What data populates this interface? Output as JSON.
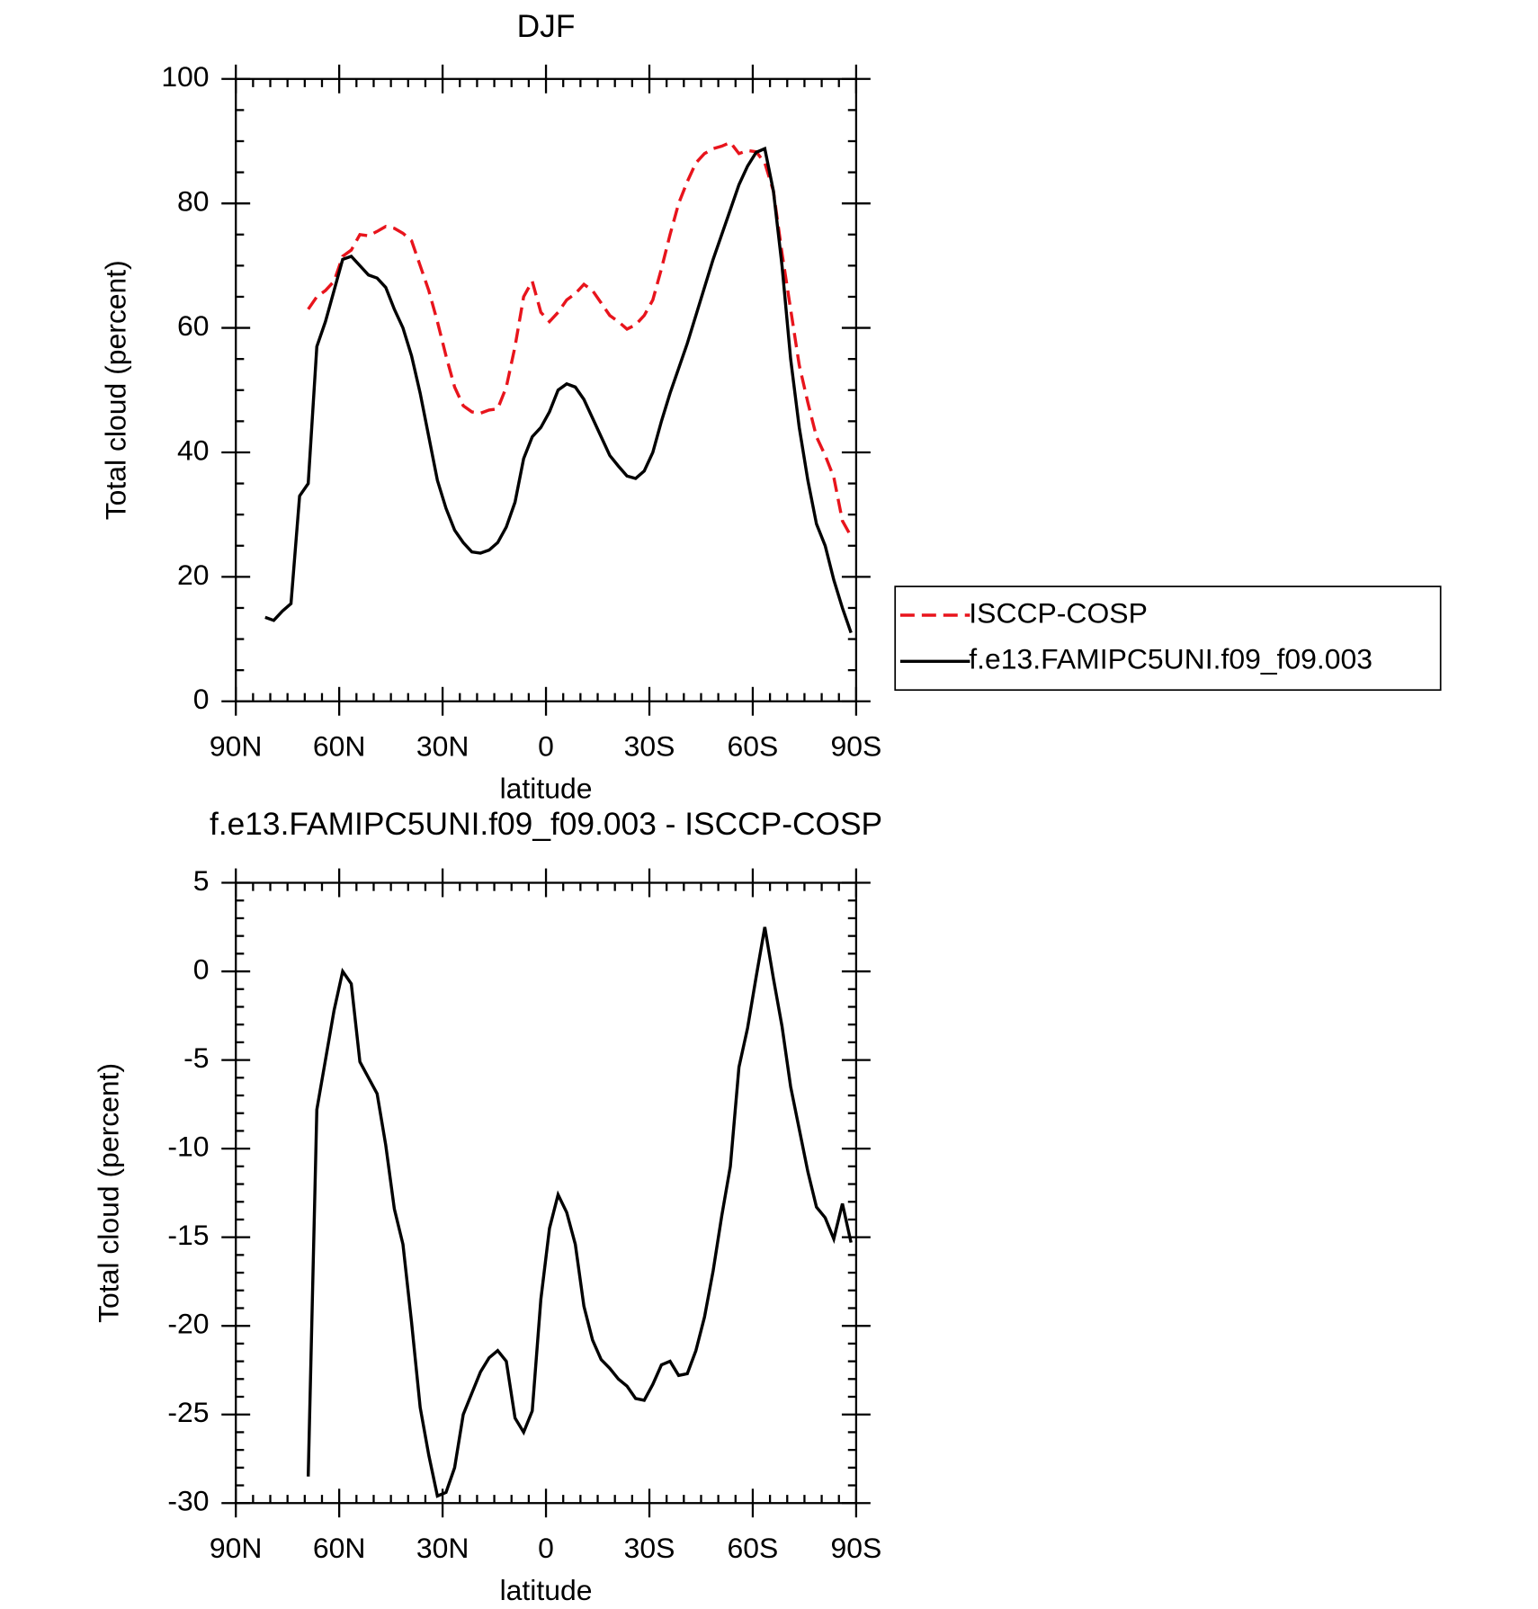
{
  "chart_data": [
    {
      "type": "line",
      "title": "DJF",
      "xlabel": "latitude",
      "ylabel": "Total cloud (percent)",
      "xlim": [
        90,
        -90
      ],
      "xticks": [
        {
          "value": 90,
          "label": "90N"
        },
        {
          "value": 60,
          "label": "60N"
        },
        {
          "value": 30,
          "label": "30N"
        },
        0,
        {
          "value": -30,
          "label": "30S"
        },
        {
          "value": -60,
          "label": "60S"
        },
        {
          "value": -90,
          "label": "90S"
        }
      ],
      "ylim": [
        0,
        100
      ],
      "yticks": [
        0,
        20,
        40,
        60,
        80,
        100
      ],
      "legend": "right",
      "series": [
        {
          "name": "ISCCP-COSP",
          "color": "#e8141c",
          "dash": true,
          "x": [
            69,
            66.5,
            64,
            61.5,
            59,
            56.5,
            54,
            51.5,
            49,
            46.5,
            44,
            41.5,
            39,
            36.5,
            34,
            31.5,
            29,
            26.5,
            24,
            21.5,
            19,
            16.5,
            14,
            11.5,
            9,
            6.5,
            4,
            1.5,
            -1,
            -3.5,
            -6,
            -8.5,
            -11,
            -13.5,
            -16,
            -18.5,
            -21,
            -23.5,
            -26,
            -28.5,
            -31,
            -33.5,
            -36,
            -38.5,
            -41,
            -43.5,
            -46,
            -48.5,
            -51,
            -53.5,
            -56,
            -58.5,
            -61,
            -63.5,
            -66,
            -68.5,
            -71,
            -73.5,
            -76,
            -78.5,
            -81,
            -83.5,
            -86,
            -88.5
          ],
          "values": [
            63,
            65,
            66,
            67.5,
            71.5,
            72.5,
            75,
            74.8,
            75.5,
            76.3,
            76,
            75.2,
            74,
            70,
            66,
            61,
            55.5,
            50.5,
            47.5,
            46.5,
            46.3,
            46.8,
            47,
            50.5,
            57,
            65,
            67.5,
            62.5,
            61,
            62.5,
            64.5,
            65.5,
            67,
            66,
            64,
            62,
            61,
            59.8,
            60.5,
            62,
            64.5,
            69.5,
            75,
            80,
            83.5,
            86.5,
            88,
            88.8,
            89.2,
            89.8,
            88,
            88.5,
            88.3,
            86.5,
            82,
            72,
            63,
            54,
            48,
            42.5,
            39.5,
            36,
            29,
            26.5
          ]
        },
        {
          "name": "f.e13.FAMIPC5UNI.f09_f09.003",
          "color": "#000000",
          "dash": false,
          "x": [
            81.5,
            79,
            76.5,
            74,
            71.5,
            69,
            66.5,
            64,
            61.5,
            59,
            56.5,
            54,
            51.5,
            49,
            46.5,
            44,
            41.5,
            39,
            36.5,
            34,
            31.5,
            29,
            26.5,
            24,
            21.5,
            19,
            16.5,
            14,
            11.5,
            9,
            6.5,
            4,
            1.5,
            -1,
            -3.5,
            -6,
            -8.5,
            -11,
            -13.5,
            -16,
            -18.5,
            -21,
            -23.5,
            -26,
            -28.5,
            -31,
            -33.5,
            -36,
            -38.5,
            -41,
            -43.5,
            -46,
            -48.5,
            -51,
            -53.5,
            -56,
            -58.5,
            -61,
            -63.5,
            -66,
            -68.5,
            -71,
            -73.5,
            -76,
            -78.5,
            -81,
            -83.5,
            -86,
            -88.5
          ],
          "values": [
            13.5,
            13,
            14.5,
            15.7,
            33,
            35,
            57,
            61,
            66,
            71,
            71.5,
            70,
            68.5,
            68,
            66.5,
            63,
            60,
            55.5,
            49.5,
            42.5,
            35.5,
            31,
            27.5,
            25.5,
            24,
            23.8,
            24.3,
            25.5,
            28,
            32,
            39,
            42.5,
            44,
            46.5,
            50,
            51,
            50.5,
            48.5,
            45.5,
            42.5,
            39.5,
            37.8,
            36.2,
            35.8,
            37,
            40,
            45,
            49.5,
            53.5,
            57.5,
            62,
            66.5,
            71,
            75,
            79,
            83,
            86,
            88.2,
            88.8,
            82,
            70,
            55,
            44,
            35.5,
            28.5,
            25,
            19.5,
            15,
            11
          ]
        }
      ]
    },
    {
      "type": "line",
      "title": "f.e13.FAMIPC5UNI.f09_f09.003 - ISCCP-COSP",
      "xlabel": "latitude",
      "ylabel": "Total cloud (percent)",
      "xlim": [
        90,
        -90
      ],
      "xticks": [
        {
          "value": 90,
          "label": "90N"
        },
        {
          "value": 60,
          "label": "60N"
        },
        {
          "value": 30,
          "label": "30N"
        },
        0,
        {
          "value": -30,
          "label": "30S"
        },
        {
          "value": -60,
          "label": "60S"
        },
        {
          "value": -90,
          "label": "90S"
        }
      ],
      "ylim": [
        -30,
        5
      ],
      "yticks": [
        -30,
        -25,
        -20,
        -15,
        -10,
        -5,
        0,
        5
      ],
      "series": [
        {
          "color": "#000000",
          "dash": false,
          "x": [
            69,
            66.5,
            64,
            61.5,
            59,
            56.5,
            54,
            51.5,
            49,
            46.5,
            44,
            41.5,
            39,
            36.5,
            34,
            31.5,
            29,
            26.5,
            24,
            21.5,
            19,
            16.5,
            14,
            11.5,
            9,
            6.5,
            4,
            1.5,
            -1,
            -3.5,
            -6,
            -8.5,
            -11,
            -13.5,
            -16,
            -18.5,
            -21,
            -23.5,
            -26,
            -28.5,
            -31,
            -33.5,
            -36,
            -38.5,
            -41,
            -43.5,
            -46,
            -48.5,
            -51,
            -53.5,
            -56,
            -58.5,
            -61,
            -63.5,
            -66,
            -68.5,
            -71,
            -73.5,
            -76,
            -78.5,
            -81,
            -83.5,
            -86,
            -88.5
          ],
          "values": [
            -28.5,
            -7.8,
            -5,
            -2.2,
            0,
            -0.7,
            -5.1,
            -6,
            -6.9,
            -9.8,
            -13.4,
            -15.4,
            -19.8,
            -24.6,
            -27.3,
            -29.6,
            -29.4,
            -28,
            -25,
            -23.8,
            -22.6,
            -21.8,
            -21.4,
            -22,
            -25.2,
            -26,
            -24.8,
            -18.5,
            -14.5,
            -12.6,
            -13.6,
            -15.4,
            -18.9,
            -20.8,
            -21.9,
            -22.4,
            -23,
            -23.4,
            -24.1,
            -24.2,
            -23.3,
            -22.2,
            -22,
            -22.8,
            -22.7,
            -21.4,
            -19.5,
            -16.9,
            -13.8,
            -11,
            -5.4,
            -3.2,
            -0.3,
            2.5,
            -0.4,
            -3.1,
            -6.5,
            -8.9,
            -11.3,
            -13.3,
            -13.9,
            -15.1,
            -13.1,
            -15.3
          ]
        }
      ]
    }
  ]
}
